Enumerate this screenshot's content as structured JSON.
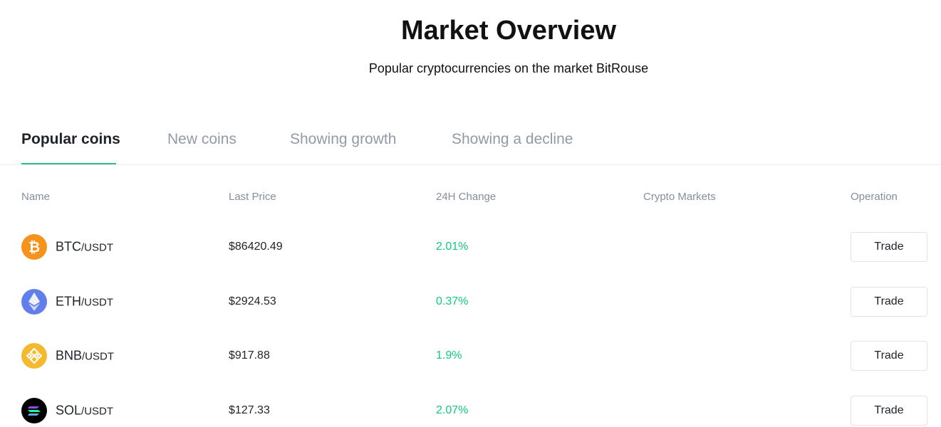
{
  "header": {
    "title": "Market Overview",
    "subtitle": "Popular cryptocurrencies on the market BitRouse"
  },
  "tabs": [
    "Popular coins",
    "New coins",
    "Showing growth",
    "Showing a decline"
  ],
  "table": {
    "columns": [
      "Name",
      "Last Price",
      "24H Change",
      "Crypto Markets",
      "Operation"
    ],
    "rows": [
      {
        "base": "BTC",
        "quote": "/USDT",
        "price": "$86420.49",
        "change": "2.01%",
        "action": "Trade"
      },
      {
        "base": "ETH",
        "quote": "/USDT",
        "price": "$2924.53",
        "change": "0.37%",
        "action": "Trade"
      },
      {
        "base": "BNB",
        "quote": "/USDT",
        "price": "$917.88",
        "change": "1.9%",
        "action": "Trade"
      },
      {
        "base": "SOL",
        "quote": "/USDT",
        "price": "$127.33",
        "change": "2.07%",
        "action": "Trade"
      }
    ]
  }
}
